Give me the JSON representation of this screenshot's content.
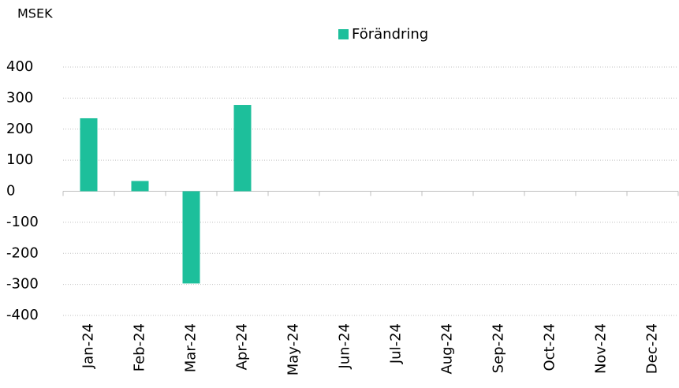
{
  "chart_data": {
    "type": "bar",
    "y_label": "MSEK",
    "legend": "Förändring",
    "categories": [
      "Jan-24",
      "Feb-24",
      "Mar-24",
      "Apr-24",
      "May-24",
      "Jun-24",
      "Jul-24",
      "Aug-24",
      "Sep-24",
      "Oct-24",
      "Nov-24",
      "Dec-24"
    ],
    "values": [
      235,
      33,
      -297,
      278,
      null,
      null,
      null,
      null,
      null,
      null,
      null,
      null
    ],
    "color": "#1dbf9b",
    "ylim": [
      -400,
      400
    ],
    "yticks": [
      -400,
      -300,
      -200,
      -100,
      0,
      100,
      200,
      300,
      400
    ],
    "grid": true
  }
}
